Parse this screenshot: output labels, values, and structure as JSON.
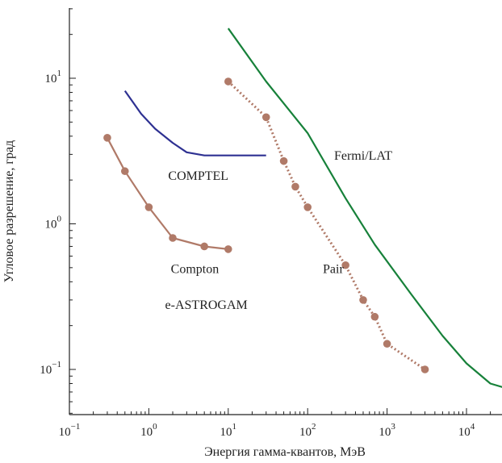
{
  "chart_data": {
    "type": "line",
    "title": "",
    "xlabel": "Энергия гамма-квантов, МэВ",
    "ylabel": "Угловое разрешение, град",
    "x_scale": "log",
    "y_scale": "log",
    "xlim": [
      0.1,
      30000
    ],
    "ylim": [
      0.05,
      30
    ],
    "grid": false,
    "x_ticks": [
      {
        "value": 0.1,
        "base": "10",
        "exp": "−1"
      },
      {
        "value": 1,
        "base": "10",
        "exp": "0"
      },
      {
        "value": 10,
        "base": "10",
        "exp": "1"
      },
      {
        "value": 100,
        "base": "10",
        "exp": "2"
      },
      {
        "value": 1000,
        "base": "10",
        "exp": "3"
      },
      {
        "value": 10000,
        "base": "10",
        "exp": "4"
      }
    ],
    "y_ticks": [
      {
        "value": 0.1,
        "base": "10",
        "exp": "−1"
      },
      {
        "value": 1,
        "base": "10",
        "exp": "0"
      },
      {
        "value": 10,
        "base": "10",
        "exp": "1"
      }
    ],
    "series": [
      {
        "name": "Compton",
        "group": "e-ASTROGAM",
        "color": "#b07a68",
        "style": "solid",
        "markers": true,
        "x": [
          0.3,
          0.5,
          1,
          2,
          5,
          10
        ],
        "y": [
          3.9,
          2.3,
          1.3,
          0.8,
          0.7,
          0.67
        ]
      },
      {
        "name": "Pair",
        "group": "e-ASTROGAM",
        "color": "#b07a68",
        "style": "dotted",
        "markers": true,
        "x": [
          10,
          30,
          50,
          70,
          100,
          300,
          500,
          700,
          1000,
          3000
        ],
        "y": [
          9.5,
          5.4,
          2.7,
          1.8,
          1.3,
          0.52,
          0.3,
          0.23,
          0.15,
          0.1
        ]
      },
      {
        "name": "COMPTEL",
        "color": "#2e3192",
        "style": "solid",
        "markers": false,
        "x": [
          0.5,
          0.8,
          1.2,
          2,
          3,
          5,
          10,
          30
        ],
        "y": [
          8.2,
          5.7,
          4.5,
          3.6,
          3.1,
          2.95,
          2.95,
          2.95
        ]
      },
      {
        "name": "Fermi/LAT",
        "color": "#17813a",
        "style": "solid",
        "markers": false,
        "x": [
          10,
          30,
          100,
          300,
          700,
          2000,
          5000,
          10000,
          20000,
          30000
        ],
        "y": [
          22,
          9.5,
          4.2,
          1.5,
          0.72,
          0.33,
          0.17,
          0.11,
          0.08,
          0.075
        ]
      }
    ],
    "annotations": [
      {
        "text": "COMPTEL",
        "x": 4.2,
        "y": 2.0
      },
      {
        "text": "Fermi/LAT",
        "x": 500,
        "y": 2.75
      },
      {
        "text": "Compton",
        "x": 3.8,
        "y": 0.46
      },
      {
        "text": "Pair",
        "x": 210,
        "y": 0.46
      },
      {
        "text": "e-ASTROGAM",
        "x": 5.3,
        "y": 0.26
      }
    ]
  }
}
